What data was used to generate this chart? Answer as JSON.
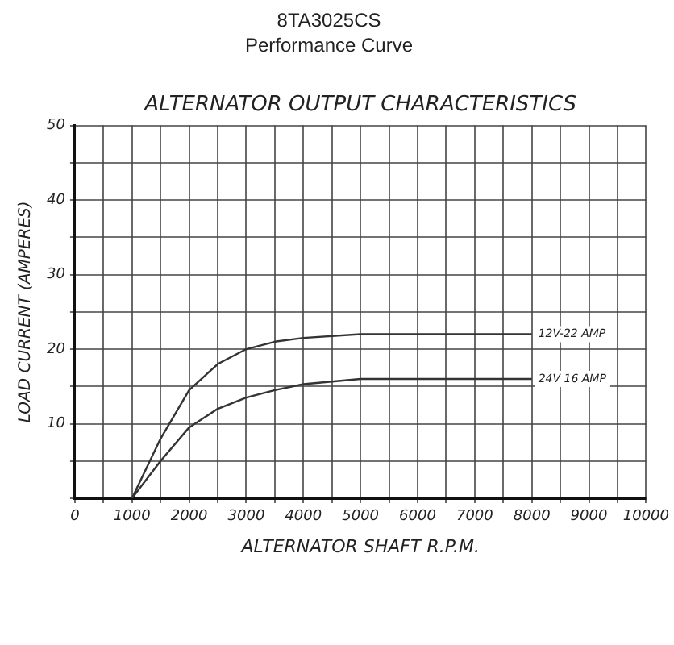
{
  "chart_data": {
    "type": "line",
    "title": "8TA3025CS",
    "subtitle": "Performance Curve",
    "annotations": [
      "ALTERNATOR OUTPUT CHARACTERISTICS"
    ],
    "xlabel": "ALTERNATOR SHAFT R.P.M.",
    "ylabel": "LOAD CURRENT (AMPERES)",
    "series": [
      {
        "name": "12V-22 AMP",
        "color": "#333333",
        "x": [
          1000,
          1500,
          2000,
          2500,
          3000,
          3500,
          4000,
          5000,
          6000,
          8000
        ],
        "values": [
          0,
          8,
          14.5,
          18,
          20,
          21,
          21.5,
          22,
          22,
          22
        ]
      },
      {
        "name": "24V 16 AMP",
        "color": "#333333",
        "x": [
          1000,
          1500,
          2000,
          2500,
          3000,
          3500,
          4000,
          5000,
          6000,
          8000
        ],
        "values": [
          0,
          5,
          9.5,
          12,
          13.5,
          14.5,
          15.3,
          16,
          16,
          16
        ]
      }
    ],
    "xlim": [
      0,
      10000
    ],
    "xticks": [
      0,
      {
        "value": 500,
        "label": null
      },
      1000,
      {
        "value": 1500,
        "label": null
      },
      2000,
      {
        "value": 2500,
        "label": null
      },
      3000,
      {
        "value": 3500,
        "label": null
      },
      4000,
      {
        "value": 4500,
        "label": null
      },
      5000,
      {
        "value": 5500,
        "label": null
      },
      6000,
      {
        "value": 6500,
        "label": null
      },
      7000,
      {
        "value": 7500,
        "label": null
      },
      8000,
      {
        "value": 8500,
        "label": null
      },
      9000,
      {
        "value": 9500,
        "label": null
      },
      10000
    ],
    "ylim": [
      0,
      50
    ],
    "yticks": [
      {
        "value": 0,
        "label": null
      },
      {
        "value": 5,
        "label": null
      },
      10,
      {
        "value": 15,
        "label": null
      },
      20,
      {
        "value": 25,
        "label": null
      },
      30,
      {
        "value": 35,
        "label": null
      },
      40,
      {
        "value": 45,
        "label": null
      },
      50
    ],
    "grid": true,
    "legend": false,
    "marker": "none",
    "line_style": "solid"
  }
}
